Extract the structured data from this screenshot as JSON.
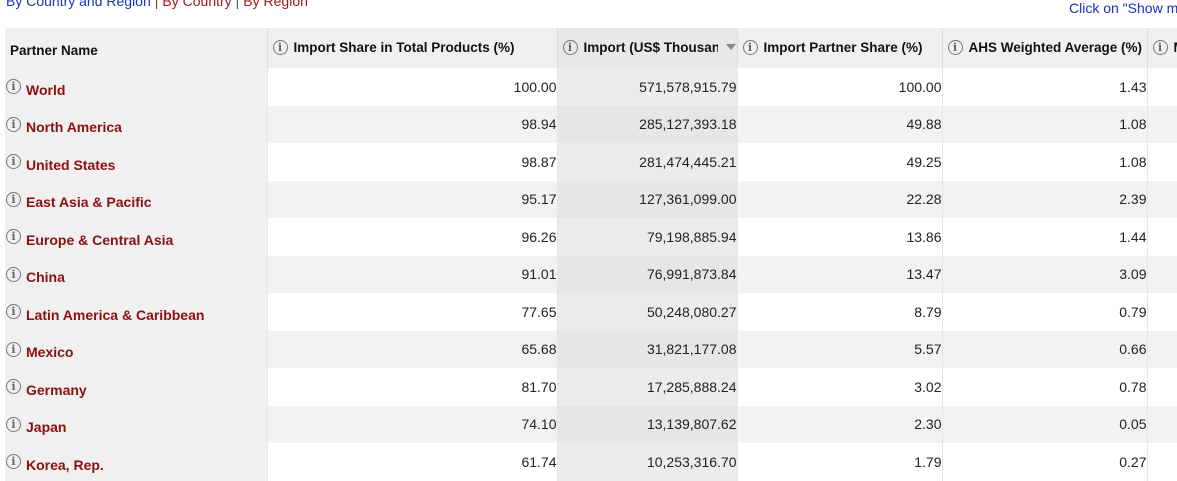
{
  "nav": {
    "by_country_region": "By Country and Region",
    "separator": "|",
    "by_country": "By Country",
    "by_region": "By Region"
  },
  "hint": "Click on \"Show m",
  "table": {
    "columns": [
      {
        "label": "Partner Name"
      },
      {
        "label": "Import Share in Total Products (%)"
      },
      {
        "label": "Import (US$ Thousand)"
      },
      {
        "label": "Import Partner Share (%)"
      },
      {
        "label": "AHS Weighted Average (%)"
      },
      {
        "label": "M"
      }
    ],
    "sorted_column": "Import (US$ Thousand)",
    "sort_direction": "descending",
    "rows": [
      {
        "name": "World",
        "share_total": "100.00",
        "import": "571,578,915.79",
        "partner_share": "100.00",
        "ahs": "1.43"
      },
      {
        "name": "North America",
        "share_total": "98.94",
        "import": "285,127,393.18",
        "partner_share": "49.88",
        "ahs": "1.08"
      },
      {
        "name": "United States",
        "share_total": "98.87",
        "import": "281,474,445.21",
        "partner_share": "49.25",
        "ahs": "1.08"
      },
      {
        "name": "East Asia & Pacific",
        "share_total": "95.17",
        "import": "127,361,099.00",
        "partner_share": "22.28",
        "ahs": "2.39"
      },
      {
        "name": "Europe & Central Asia",
        "share_total": "96.26",
        "import": "79,198,885.94",
        "partner_share": "13.86",
        "ahs": "1.44"
      },
      {
        "name": "China",
        "share_total": "91.01",
        "import": "76,991,873.84",
        "partner_share": "13.47",
        "ahs": "3.09"
      },
      {
        "name": "Latin America & Caribbean",
        "share_total": "77.65",
        "import": "50,248,080.27",
        "partner_share": "8.79",
        "ahs": "0.79"
      },
      {
        "name": "Mexico",
        "share_total": "65.68",
        "import": "31,821,177.08",
        "partner_share": "5.57",
        "ahs": "0.66"
      },
      {
        "name": "Germany",
        "share_total": "81.70",
        "import": "17,285,888.24",
        "partner_share": "3.02",
        "ahs": "0.78"
      },
      {
        "name": "Japan",
        "share_total": "74.10",
        "import": "13,139,807.62",
        "partner_share": "2.30",
        "ahs": "0.05"
      },
      {
        "name": "Korea, Rep.",
        "share_total": "61.74",
        "import": "10,253,316.70",
        "partner_share": "1.79",
        "ahs": "0.27"
      }
    ]
  },
  "icons": {
    "info": "info-circle-icon",
    "sort": "sort-descending-icon"
  },
  "colors": {
    "link_blue": "#1a33b8",
    "link_red": "#8b1010",
    "header_bg": "#f0f0f0"
  }
}
